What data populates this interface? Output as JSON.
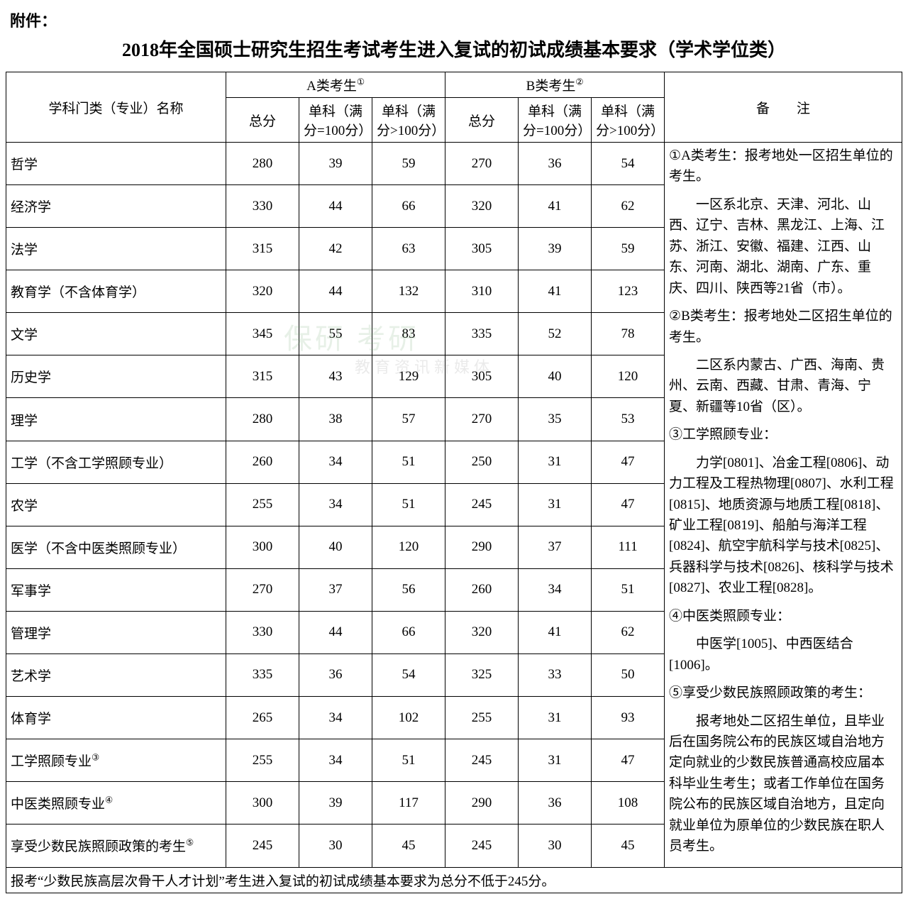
{
  "attachment_label": "附件：",
  "title": "2018年全国硕士研究生招生考试考生进入复试的初试成绩基本要求（学术学位类）",
  "header": {
    "subject": "学科门类（专业）名称",
    "groupA": "A类考生",
    "groupB": "B类考生",
    "supA": "①",
    "supB": "②",
    "total": "总分",
    "single100": "单科（满分=100分）",
    "singleGt100": "单科（满分>100分）",
    "notes": "备　　注"
  },
  "rows": [
    {
      "name": "哲学",
      "a": [
        280,
        39,
        59
      ],
      "b": [
        270,
        36,
        54
      ]
    },
    {
      "name": "经济学",
      "a": [
        330,
        44,
        66
      ],
      "b": [
        320,
        41,
        62
      ]
    },
    {
      "name": "法学",
      "a": [
        315,
        42,
        63
      ],
      "b": [
        305,
        39,
        59
      ]
    },
    {
      "name": "教育学（不含体育学）",
      "a": [
        320,
        44,
        132
      ],
      "b": [
        310,
        41,
        123
      ]
    },
    {
      "name": "文学",
      "a": [
        345,
        55,
        83
      ],
      "b": [
        335,
        52,
        78
      ]
    },
    {
      "name": "历史学",
      "a": [
        315,
        43,
        129
      ],
      "b": [
        305,
        40,
        120
      ]
    },
    {
      "name": "理学",
      "a": [
        280,
        38,
        57
      ],
      "b": [
        270,
        35,
        53
      ]
    },
    {
      "name": "工学（不含工学照顾专业）",
      "a": [
        260,
        34,
        51
      ],
      "b": [
        250,
        31,
        47
      ]
    },
    {
      "name": "农学",
      "a": [
        255,
        34,
        51
      ],
      "b": [
        245,
        31,
        47
      ]
    },
    {
      "name": "医学（不含中医类照顾专业）",
      "a": [
        300,
        40,
        120
      ],
      "b": [
        290,
        37,
        111
      ]
    },
    {
      "name": "军事学",
      "a": [
        270,
        37,
        56
      ],
      "b": [
        260,
        34,
        51
      ]
    },
    {
      "name": "管理学",
      "a": [
        330,
        44,
        66
      ],
      "b": [
        320,
        41,
        62
      ]
    },
    {
      "name": "艺术学",
      "a": [
        335,
        36,
        54
      ],
      "b": [
        325,
        33,
        50
      ]
    },
    {
      "name": "体育学",
      "a": [
        265,
        34,
        102
      ],
      "b": [
        255,
        31,
        93
      ]
    },
    {
      "name": "工学照顾专业",
      "sup": "③",
      "a": [
        255,
        34,
        51
      ],
      "b": [
        245,
        31,
        47
      ]
    },
    {
      "name": "中医类照顾专业",
      "sup": "④",
      "a": [
        300,
        39,
        117
      ],
      "b": [
        290,
        36,
        108
      ]
    },
    {
      "name": "享受少数民族照顾政策的考生",
      "sup": "⑤",
      "a": [
        245,
        30,
        45
      ],
      "b": [
        245,
        30,
        45
      ]
    }
  ],
  "footer": "报考“少数民族高层次骨干人才计划”考生进入复试的初试成绩基本要求为总分不低于245分。",
  "notes": {
    "n1_head": "①A类考生：报考地处一区招生单位的考生。",
    "n1_body": "一区系北京、天津、河北、山西、辽宁、吉林、黑龙江、上海、江苏、浙江、安徽、福建、江西、山东、河南、湖北、湖南、广东、重庆、四川、陕西等21省（市）。",
    "n2_head": "②B类考生：报考地处二区招生单位的考生。",
    "n2_body": "二区系内蒙古、广西、海南、贵州、云南、西藏、甘肃、青海、宁夏、新疆等10省（区）。",
    "n3_head": "③工学照顾专业：",
    "n3_body": "力学[0801]、冶金工程[0806]、动力工程及工程热物理[0807]、水利工程[0815]、地质资源与地质工程[0818]、矿业工程[0819]、船舶与海洋工程[0824]、航空宇航科学与技术[0825]、兵器科学与技术[0826]、核科学与技术[0827]、农业工程[0828]。",
    "n4_head": "④中医类照顾专业：",
    "n4_body": "中医学[1005]、中西医结合[1006]。",
    "n5_head": "⑤享受少数民族照顾政策的考生：",
    "n5_body": "报考地处二区招生单位，且毕业后在国务院公布的民族区域自治地方定向就业的少数民族普通高校应届本科毕业生考生；或者工作单位在国务院公布的民族区域自治地方，且定向就业单位为原单位的少数民族在职人员考生。"
  },
  "style": {
    "page_bg": "#ffffff",
    "text_color": "#000000",
    "border_color": "#000000",
    "title_fontsize": 26,
    "cell_fontsize": 19,
    "notes_fontsize": 15,
    "font_family": "KaiTi"
  }
}
